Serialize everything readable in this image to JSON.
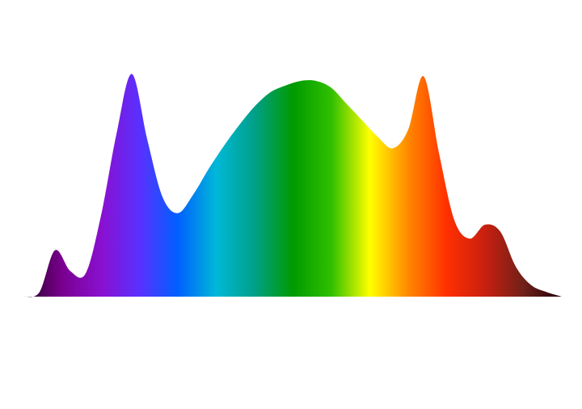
{
  "chart_data": {
    "type": "area",
    "categories": [
      null,
      null,
      null,
      null,
      null,
      null,
      null,
      null,
      null,
      null,
      null,
      null,
      null,
      null,
      null,
      null,
      null,
      null,
      null,
      null,
      null,
      null,
      null,
      null,
      null,
      null,
      null,
      null,
      null,
      null,
      null,
      null,
      null,
      null,
      null,
      null
    ],
    "values": [
      0,
      2,
      20,
      11,
      10,
      35,
      70,
      96,
      68,
      43,
      36,
      44,
      55,
      65,
      74,
      82,
      88,
      91,
      93,
      93,
      90,
      83,
      76,
      69,
      64,
      72,
      95,
      62,
      33,
      25,
      31,
      28,
      13,
      5,
      2,
      0
    ],
    "ylim": [
      0,
      100
    ],
    "gradient": [
      "#2a0028",
      "#7a0090",
      "#8a10d0",
      "#5a30ff",
      "#0060ff",
      "#00b8d8",
      "#00a088",
      "#009a00",
      "#30c000",
      "#ffff00",
      "#ff8800",
      "#ff3000",
      "#c82010",
      "#702018",
      "#200008"
    ]
  }
}
